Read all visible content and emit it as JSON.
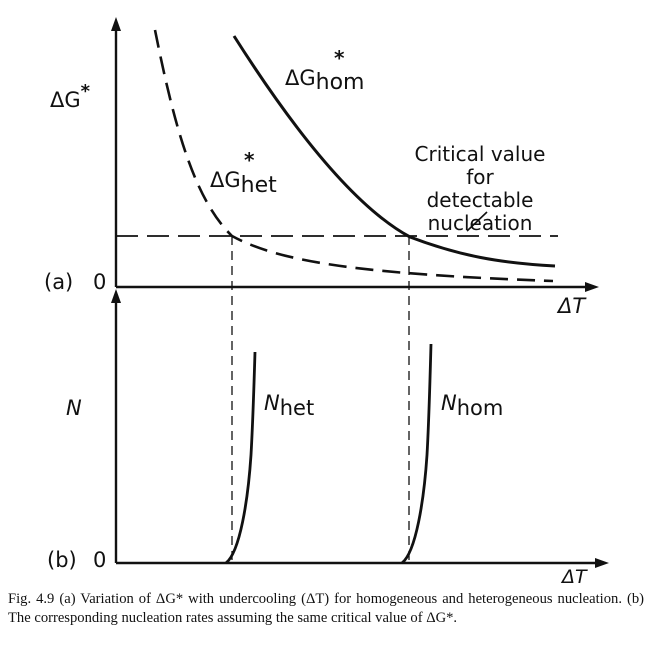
{
  "panel_a": {
    "panel_label": "(a)",
    "zero_label": "0",
    "y_axis_label": "ΔG*",
    "x_axis_label": "ΔT",
    "curve_hom_label": "ΔG*hom",
    "curve_hom_base": "ΔG",
    "curve_hom_sub": "hom",
    "curve_het_label": "ΔG*het",
    "curve_het_base": "ΔG",
    "curve_het_sub": "het",
    "star": "*",
    "critical_label_line1": "Critical value",
    "critical_label_line2": "for detectable",
    "critical_label_line3": "nucleation"
  },
  "panel_b": {
    "panel_label": "(b)",
    "zero_label": "0",
    "y_axis_label": "N",
    "x_axis_label": "ΔT",
    "curve_het_label": "Nhet",
    "curve_het_base": "N",
    "curve_het_sub": "het",
    "curve_hom_label": "Nhom",
    "curve_hom_base": "N",
    "curve_hom_sub": "hom"
  },
  "caption": "Fig. 4.9  (a) Variation of ΔG* with undercooling (ΔT) for homogeneous and heterogeneous nucleation.  (b) The corresponding nucleation rates assuming the same critical value of ΔG*."
}
